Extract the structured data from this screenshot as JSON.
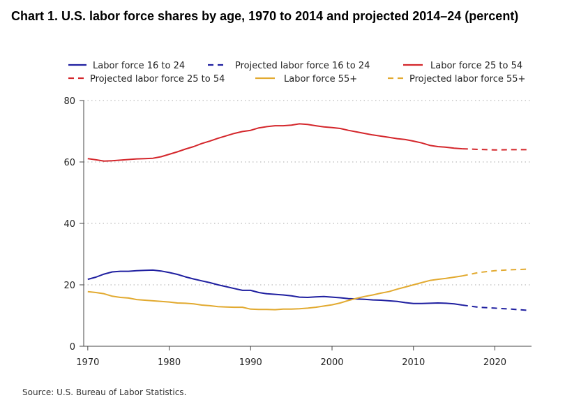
{
  "title": "Chart 1. U.S. labor force shares by age, 1970 to 2014 and projected 2014–24 (percent)",
  "source": "Source: U.S. Bureau of Labor Statistics.",
  "colors": {
    "blue": "#1f1fa0",
    "red": "#d4262b",
    "gold": "#e2aa30",
    "grid": "#bbbbbb",
    "axis": "#444444"
  },
  "chart_data": {
    "type": "line",
    "title": "Chart 1. U.S. labor force shares by age, 1970 to 2014 and projected 2014–24 (percent)",
    "xlabel": "",
    "ylabel": "",
    "xlim": [
      1969.5,
      2024.5
    ],
    "ylim": [
      0,
      80
    ],
    "xticks": [
      1970,
      1980,
      1990,
      2000,
      2010,
      2020
    ],
    "yticks": [
      0,
      20,
      40,
      60,
      80
    ],
    "grid": "horizontal dotted",
    "legend_position": "top",
    "series": [
      {
        "name": "Labor force 16 to 24",
        "style": "solid",
        "color": "#1f1fa0",
        "x": [
          1970,
          1971,
          1972,
          1973,
          1974,
          1975,
          1976,
          1977,
          1978,
          1979,
          1980,
          1981,
          1982,
          1983,
          1984,
          1985,
          1986,
          1987,
          1988,
          1989,
          1990,
          1991,
          1992,
          1993,
          1994,
          1995,
          1996,
          1997,
          1998,
          1999,
          2000,
          2001,
          2002,
          2003,
          2004,
          2005,
          2006,
          2007,
          2008,
          2009,
          2010,
          2011,
          2012,
          2013,
          2014,
          2015,
          2016
        ],
        "y": [
          21.8,
          22.5,
          23.5,
          24.2,
          24.4,
          24.4,
          24.6,
          24.7,
          24.8,
          24.5,
          24.0,
          23.4,
          22.6,
          21.9,
          21.3,
          20.7,
          20.0,
          19.4,
          18.8,
          18.2,
          18.2,
          17.5,
          17.1,
          16.9,
          16.7,
          16.4,
          16.0,
          15.9,
          16.1,
          16.2,
          16.0,
          15.8,
          15.5,
          15.4,
          15.3,
          15.1,
          15.0,
          14.8,
          14.6,
          14.2,
          13.9,
          13.9,
          14.0,
          14.1,
          14.0,
          13.8,
          13.4
        ]
      },
      {
        "name": "Projected labor force 16 to 24",
        "style": "dashed",
        "color": "#1f1fa0",
        "x": [
          2016,
          2018,
          2020,
          2022,
          2024
        ],
        "y": [
          13.4,
          12.7,
          12.4,
          12.1,
          11.7
        ]
      },
      {
        "name": "Labor force 25 to 54",
        "style": "solid",
        "color": "#d4262b",
        "x": [
          1970,
          1971,
          1972,
          1973,
          1974,
          1975,
          1976,
          1977,
          1978,
          1979,
          1980,
          1981,
          1982,
          1983,
          1984,
          1985,
          1986,
          1987,
          1988,
          1989,
          1990,
          1991,
          1992,
          1993,
          1994,
          1995,
          1996,
          1997,
          1998,
          1999,
          2000,
          2001,
          2002,
          2003,
          2004,
          2005,
          2006,
          2007,
          2008,
          2009,
          2010,
          2011,
          2012,
          2013,
          2014,
          2015,
          2016
        ],
        "y": [
          61.1,
          60.7,
          60.3,
          60.4,
          60.6,
          60.8,
          61.0,
          61.1,
          61.2,
          61.7,
          62.5,
          63.3,
          64.2,
          65.0,
          66.0,
          66.8,
          67.7,
          68.5,
          69.3,
          69.9,
          70.3,
          71.1,
          71.5,
          71.8,
          71.8,
          72.0,
          72.4,
          72.2,
          71.8,
          71.4,
          71.2,
          70.9,
          70.3,
          69.8,
          69.3,
          68.8,
          68.4,
          68.0,
          67.6,
          67.3,
          66.8,
          66.2,
          65.4,
          65.0,
          64.8,
          64.5,
          64.3
        ]
      },
      {
        "name": "Projected labor force 25 to 54",
        "style": "dashed",
        "color": "#d4262b",
        "x": [
          2016,
          2018,
          2020,
          2022,
          2024
        ],
        "y": [
          64.3,
          64.1,
          63.9,
          64.0,
          64.0
        ]
      },
      {
        "name": "Labor force 55+",
        "style": "solid",
        "color": "#e2aa30",
        "x": [
          1970,
          1971,
          1972,
          1973,
          1974,
          1975,
          1976,
          1977,
          1978,
          1979,
          1980,
          1981,
          1982,
          1983,
          1984,
          1985,
          1986,
          1987,
          1988,
          1989,
          1990,
          1991,
          1992,
          1993,
          1994,
          1995,
          1996,
          1997,
          1998,
          1999,
          2000,
          2001,
          2002,
          2003,
          2004,
          2005,
          2006,
          2007,
          2008,
          2009,
          2010,
          2011,
          2012,
          2013,
          2014,
          2015,
          2016
        ],
        "y": [
          17.8,
          17.5,
          17.1,
          16.3,
          15.9,
          15.7,
          15.2,
          15.0,
          14.8,
          14.6,
          14.4,
          14.1,
          14.0,
          13.8,
          13.4,
          13.2,
          12.9,
          12.8,
          12.7,
          12.7,
          12.1,
          12.0,
          12.0,
          11.9,
          12.1,
          12.1,
          12.2,
          12.4,
          12.7,
          13.1,
          13.5,
          14.1,
          14.9,
          15.6,
          16.2,
          16.7,
          17.3,
          17.8,
          18.6,
          19.3,
          20.0,
          20.7,
          21.4,
          21.8,
          22.1,
          22.5,
          22.9
        ]
      },
      {
        "name": "Projected labor force 55+",
        "style": "dashed",
        "color": "#e2aa30",
        "x": [
          2016,
          2018,
          2020,
          2022,
          2024
        ],
        "y": [
          22.9,
          24.0,
          24.6,
          24.9,
          25.1
        ]
      }
    ]
  }
}
